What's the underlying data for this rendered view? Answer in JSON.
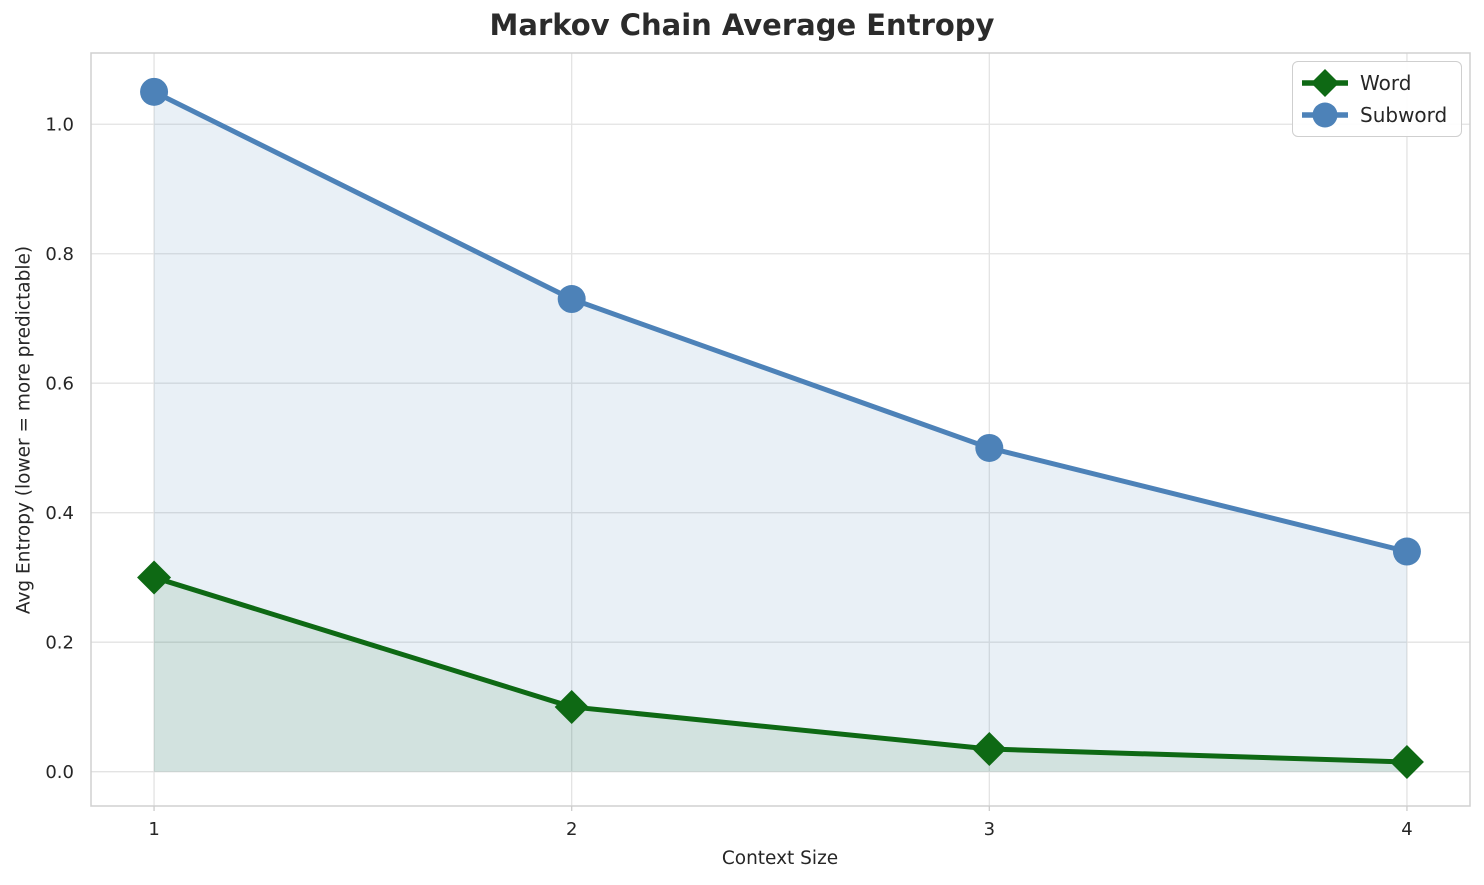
{
  "chart_data": {
    "type": "line",
    "title": "Markov Chain Average Entropy",
    "xlabel": "Context Size",
    "ylabel": "Avg Entropy (lower = more predictable)",
    "x": [
      1,
      2,
      3,
      4
    ],
    "series": [
      {
        "name": "Word",
        "values": [
          0.3,
          0.1,
          0.035,
          0.015
        ],
        "color": "#0e6914",
        "marker": "diamond"
      },
      {
        "name": "Subword",
        "values": [
          1.05,
          0.73,
          0.5,
          0.34
        ],
        "color": "#4d82b8",
        "marker": "circle"
      }
    ],
    "xticks": [
      1,
      2,
      3,
      4
    ],
    "xtick_labels": [
      "1",
      "2",
      "3",
      "4"
    ],
    "yticks": [
      0.0,
      0.2,
      0.4,
      0.6,
      0.8,
      1.0
    ],
    "ytick_labels": [
      "0.0",
      "0.2",
      "0.4",
      "0.6",
      "0.8",
      "1.0"
    ],
    "xlim": [
      0.849,
      4.151
    ],
    "ylim": [
      -0.053,
      1.11
    ],
    "grid": true,
    "legend": {
      "position": "upper right",
      "entries": [
        "Word",
        "Subword"
      ]
    },
    "area_fill": {
      "enabled": true,
      "baseline": 0,
      "word_alpha": 0.1,
      "subword_alpha": 0.12
    },
    "line_width": 5,
    "marker_size": {
      "circle_radius": 14,
      "diamond_half": 17
    }
  },
  "colors": {
    "background": "#ffffff",
    "text": "#262626",
    "title": "#2b2b2b",
    "grid": "#e3e3e3",
    "spine": "#d0d0d0",
    "tick": "#cccccc",
    "legend_border": "#cfcfcf"
  }
}
